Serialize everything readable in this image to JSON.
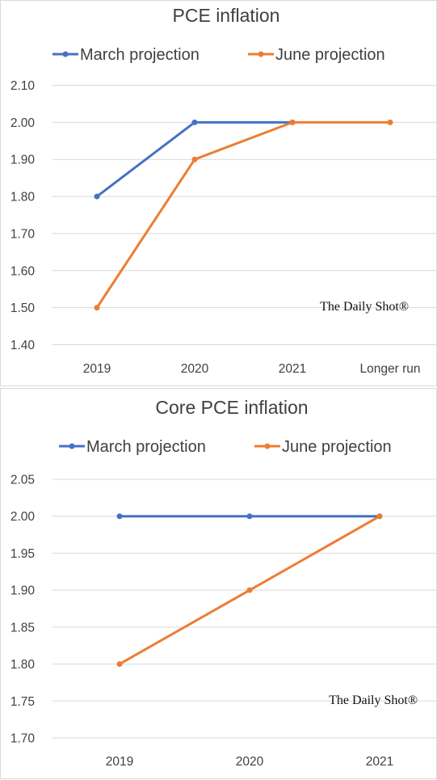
{
  "chart_data": [
    {
      "type": "line",
      "title": "PCE inflation",
      "categories": [
        "2019",
        "2020",
        "2021",
        "Longer run"
      ],
      "series": [
        {
          "name": "March projection",
          "color": "#4472c4",
          "values": [
            1.8,
            2.0,
            2.0,
            null
          ]
        },
        {
          "name": "June projection",
          "color": "#ed7d31",
          "values": [
            1.5,
            1.9,
            2.0,
            2.0
          ]
        }
      ],
      "yticks": [
        "2.10",
        "2.00",
        "1.90",
        "1.80",
        "1.70",
        "1.60",
        "1.50",
        "1.40"
      ],
      "ylim": [
        1.4,
        2.1
      ],
      "grid": true,
      "legend": "top",
      "watermark": "The Daily Shot®"
    },
    {
      "type": "line",
      "title": "Core PCE inflation",
      "categories": [
        "2019",
        "2020",
        "2021"
      ],
      "series": [
        {
          "name": "March projection",
          "color": "#4472c4",
          "values": [
            2.0,
            2.0,
            2.0
          ]
        },
        {
          "name": "June projection",
          "color": "#ed7d31",
          "values": [
            1.8,
            1.9,
            2.0
          ]
        }
      ],
      "yticks": [
        "2.05",
        "2.00",
        "1.95",
        "1.90",
        "1.85",
        "1.80",
        "1.75",
        "1.70"
      ],
      "ylim": [
        1.7,
        2.05
      ],
      "grid": true,
      "legend": "top",
      "watermark": "The Daily Shot®"
    }
  ]
}
